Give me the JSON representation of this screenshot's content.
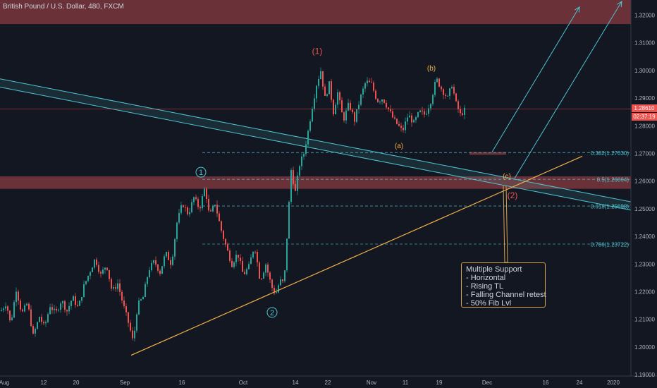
{
  "header": {
    "title": "British Pound / U.S. Dollar, 480, FXCM"
  },
  "callout": {
    "lines": [
      "Multiple Support",
      "- Horizontal",
      "- Rising TL",
      "- Falling Channel retest",
      "- 50% Fib Lvl"
    ]
  },
  "price_tags": {
    "last_price": "1.28610",
    "countdown": "02:37:19"
  },
  "colors": {
    "background": "#131722",
    "up": "#26a69a",
    "down": "#ef5350",
    "zone": "#8a3b40",
    "channel": "#4fc3d0",
    "trendline": "#f0b04a",
    "fib": "#4fc3d0",
    "wave_primary": "#ef5350",
    "wave_minor": "#f0b04a",
    "wave_teal": "#4fc3d0"
  },
  "chart_data": {
    "type": "candlestick",
    "title": "British Pound / U.S. Dollar, 480, FXCM",
    "x_ticks": [
      "Aug",
      "12",
      "20",
      "Sep",
      "16",
      "Oct",
      "14",
      "22",
      "Nov",
      "11",
      "19",
      "Dec",
      "16",
      "24",
      "2020"
    ],
    "y_ticks": [
      "1.32000",
      "1.31000",
      "1.30000",
      "1.29000",
      "1.28000",
      "1.27000",
      "1.26000",
      "1.25000",
      "1.24000",
      "1.23000",
      "1.22000",
      "1.21000",
      "1.20000",
      "1.19000"
    ],
    "ylim": [
      1.1895,
      1.3255
    ],
    "grid": false,
    "price_path": [
      [
        0,
        1.213
      ],
      [
        8,
        1.216
      ],
      [
        14,
        1.208
      ],
      [
        22,
        1.221
      ],
      [
        30,
        1.212
      ],
      [
        38,
        1.216
      ],
      [
        46,
        1.204
      ],
      [
        55,
        1.211
      ],
      [
        62,
        1.207
      ],
      [
        70,
        1.215
      ],
      [
        78,
        1.212
      ],
      [
        86,
        1.217
      ],
      [
        94,
        1.213
      ],
      [
        102,
        1.218
      ],
      [
        110,
        1.214
      ],
      [
        118,
        1.222
      ],
      [
        126,
        1.227
      ],
      [
        134,
        1.232
      ],
      [
        142,
        1.226
      ],
      [
        150,
        1.23
      ],
      [
        158,
        1.22
      ],
      [
        166,
        1.223
      ],
      [
        174,
        1.215
      ],
      [
        182,
        1.208
      ],
      [
        188,
        1.2015
      ],
      [
        194,
        1.215
      ],
      [
        202,
        1.218
      ],
      [
        210,
        1.228
      ],
      [
        218,
        1.231
      ],
      [
        226,
        1.227
      ],
      [
        234,
        1.234
      ],
      [
        242,
        1.23
      ],
      [
        250,
        1.245
      ],
      [
        258,
        1.252
      ],
      [
        266,
        1.248
      ],
      [
        274,
        1.254
      ],
      [
        282,
        1.25
      ],
      [
        290,
        1.258
      ],
      [
        296,
        1.247
      ],
      [
        304,
        1.252
      ],
      [
        312,
        1.243
      ],
      [
        320,
        1.236
      ],
      [
        328,
        1.23
      ],
      [
        336,
        1.234
      ],
      [
        344,
        1.226
      ],
      [
        352,
        1.229
      ],
      [
        360,
        1.237
      ],
      [
        368,
        1.224
      ],
      [
        376,
        1.23
      ],
      [
        384,
        1.222
      ],
      [
        390,
        1.219
      ],
      [
        396,
        1.224
      ],
      [
        402,
        1.223
      ],
      [
        408,
        1.248
      ],
      [
        412,
        1.264
      ],
      [
        418,
        1.256
      ],
      [
        424,
        1.266
      ],
      [
        430,
        1.27
      ],
      [
        436,
        1.278
      ],
      [
        442,
        1.287
      ],
      [
        448,
        1.295
      ],
      [
        454,
        1.3
      ],
      [
        460,
        1.29
      ],
      [
        466,
        1.295
      ],
      [
        472,
        1.285
      ],
      [
        478,
        1.292
      ],
      [
        486,
        1.282
      ],
      [
        494,
        1.288
      ],
      [
        502,
        1.282
      ],
      [
        510,
        1.29
      ],
      [
        518,
        1.296
      ],
      [
        526,
        1.295
      ],
      [
        534,
        1.289
      ],
      [
        542,
        1.29
      ],
      [
        550,
        1.286
      ],
      [
        558,
        1.282
      ],
      [
        564,
        1.28
      ],
      [
        570,
        1.278
      ],
      [
        578,
        1.284
      ],
      [
        586,
        1.281
      ],
      [
        594,
        1.285
      ],
      [
        602,
        1.284
      ],
      [
        610,
        1.289
      ],
      [
        618,
        1.297
      ],
      [
        626,
        1.293
      ],
      [
        634,
        1.29
      ],
      [
        640,
        1.295
      ],
      [
        646,
        1.288
      ],
      [
        652,
        1.284
      ],
      [
        660,
        1.2861
      ]
    ],
    "zones": [
      {
        "x_start": 0,
        "x_end": 895,
        "y_top": 1.3255,
        "y_bottom": 1.3168
      },
      {
        "x_start": 0,
        "x_end": 895,
        "y_top": 1.2617,
        "y_bottom": 1.2572
      },
      {
        "x_start": 666,
        "x_end": 718,
        "y_top": 1.2705,
        "y_bottom": 1.2695
      }
    ],
    "fib_levels": [
      {
        "label": "0.382(1.27030)",
        "y": 1.2703
      },
      {
        "label": "0.5(1.26064)",
        "y": 1.26064
      },
      {
        "label": "0.618(1.25098)",
        "y": 1.25098
      },
      {
        "label": "0.786(1.23722)",
        "y": 1.23722
      }
    ],
    "trendline": {
      "from": [
        186,
        1.197
      ],
      "to": [
        826,
        1.269
      ]
    },
    "channel_upper": {
      "from": [
        0,
        1.297
      ],
      "to": [
        895,
        1.2525
      ]
    },
    "channel_lower": {
      "from": [
        0,
        1.294
      ],
      "to": [
        895,
        1.2495
      ]
    },
    "arrows": [
      {
        "from": [
          698,
          1.2705
        ],
        "to": [
          822,
          1.323
        ]
      },
      {
        "from": [
          730,
          1.261
        ],
        "to": [
          882,
          1.325
        ]
      }
    ],
    "wave_labels": [
      {
        "text": "(1)",
        "x": 450,
        "y": 1.307,
        "style": "primary"
      },
      {
        "text": "(b)",
        "x": 612,
        "y": 1.301,
        "style": "minor"
      },
      {
        "text": "(a)",
        "x": 566,
        "y": 1.273,
        "style": "minor"
      },
      {
        "text": "(c)",
        "x": 719,
        "y": 1.262,
        "style": "minor"
      },
      {
        "text": "(2)",
        "x": 727,
        "y": 1.2548,
        "style": "primary"
      },
      {
        "text": "1",
        "x": 285,
        "y": 1.2632,
        "style": "circle"
      },
      {
        "text": "2",
        "x": 386,
        "y": 1.2125,
        "style": "circle"
      }
    ],
    "last_price": 1.2861
  }
}
